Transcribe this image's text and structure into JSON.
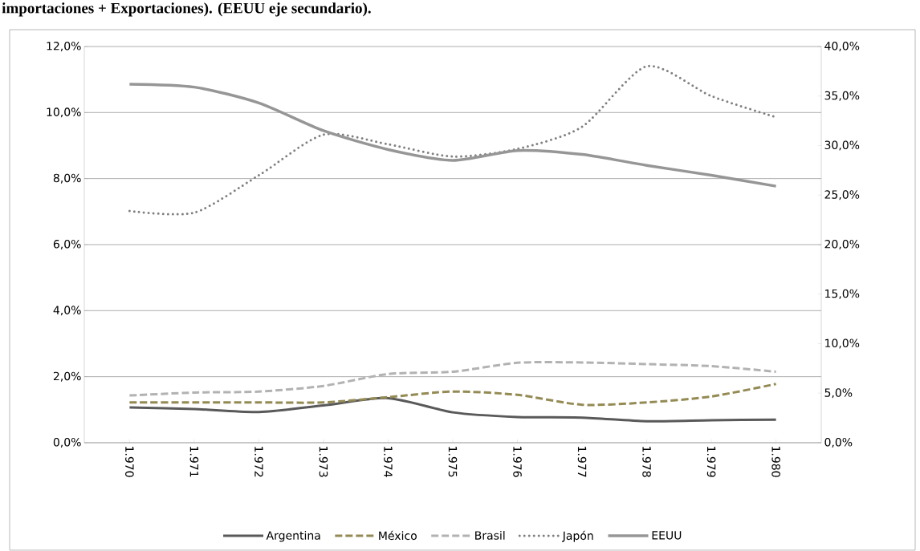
{
  "chart_data": {
    "type": "line",
    "title": "importaciones + Exportaciones). (EEUU eje secundario).",
    "categories": [
      "1.970",
      "1.971",
      "1.972",
      "1.973",
      "1.974",
      "1.975",
      "1.976",
      "1.977",
      "1.978",
      "1.979",
      "1.980"
    ],
    "series": [
      {
        "name": "Argentina",
        "color": "#595959",
        "line_style": "solid",
        "values": [
          1.07,
          1.02,
          0.93,
          1.13,
          1.35,
          0.92,
          0.78,
          0.76,
          0.65,
          0.68,
          0.7
        ]
      },
      {
        "name": "México",
        "color": "#948a54",
        "line_style": "dashed",
        "values": [
          1.22,
          1.22,
          1.22,
          1.22,
          1.38,
          1.55,
          1.45,
          1.15,
          1.22,
          1.4,
          1.78
        ]
      },
      {
        "name": "Brasil",
        "color": "#b2b2b2",
        "line_style": "dashed",
        "values": [
          1.43,
          1.52,
          1.55,
          1.72,
          2.08,
          2.15,
          2.42,
          2.43,
          2.38,
          2.32,
          2.15
        ]
      },
      {
        "name": "Japón",
        "color": "#808080",
        "line_style": "dotted",
        "values": [
          7.02,
          6.97,
          8.1,
          9.33,
          9.04,
          8.67,
          8.9,
          9.57,
          11.4,
          10.5,
          9.86
        ]
      },
      {
        "name": "EEUU",
        "color": "#969696",
        "line_style": "solid",
        "axis": "y2",
        "values": [
          36.2,
          35.9,
          34.3,
          31.5,
          29.6,
          28.5,
          29.5,
          29.1,
          28.0,
          27.0,
          25.9
        ]
      }
    ],
    "ylim": [
      0,
      12
    ],
    "yticks": [
      {
        "value": 0,
        "label": "0,0%"
      },
      {
        "value": 2,
        "label": "2,0%"
      },
      {
        "value": 4,
        "label": "4,0%"
      },
      {
        "value": 6,
        "label": "6,0%"
      },
      {
        "value": 8,
        "label": "8,0%"
      },
      {
        "value": 10,
        "label": "10,0%"
      },
      {
        "value": 12,
        "label": "12,0%"
      }
    ],
    "y2lim": [
      0,
      40
    ],
    "y2ticks": [
      {
        "value": 0,
        "label": "0,0%"
      },
      {
        "value": 5,
        "label": "5,0%"
      },
      {
        "value": 10,
        "label": "10,0%"
      },
      {
        "value": 15,
        "label": "15,0%"
      },
      {
        "value": 20,
        "label": "20,0%"
      },
      {
        "value": 25,
        "label": "25,0%"
      },
      {
        "value": 30,
        "label": "30,0%"
      },
      {
        "value": 35,
        "label": "35,0%"
      },
      {
        "value": 40,
        "label": "40,0%"
      }
    ],
    "grid": "y",
    "legend": "bottom",
    "marker": "none"
  }
}
